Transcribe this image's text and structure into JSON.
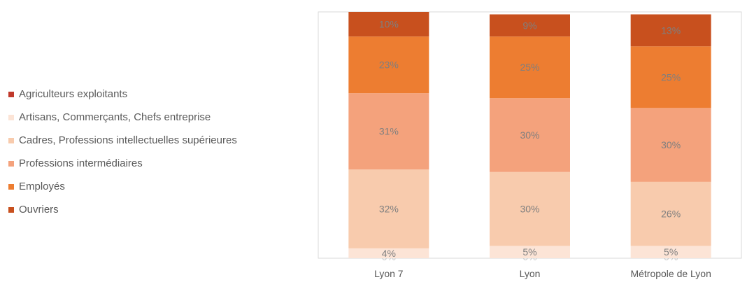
{
  "chart_data": {
    "type": "bar",
    "stacked": true,
    "percent": true,
    "title": "",
    "xlabel": "",
    "ylabel": "",
    "ylim": [
      0,
      100
    ],
    "grid": false,
    "legend_position": "left",
    "categories": [
      "Lyon 7",
      "Lyon",
      "Métropole de Lyon"
    ],
    "series": [
      {
        "name": "Agriculteurs exploitants",
        "color": "#c0392b",
        "values": [
          0,
          0,
          0
        ],
        "labels": [
          "0%",
          "0%",
          "0%"
        ]
      },
      {
        "name": "Artisans, Commerçants, Chefs entreprise",
        "color": "#fce4d6",
        "values": [
          4,
          5,
          5
        ],
        "labels": [
          "4%",
          "5%",
          "5%"
        ]
      },
      {
        "name": "Cadres, Professions intellectuelles supérieures",
        "color": "#f8cbad",
        "values": [
          32,
          30,
          26
        ],
        "labels": [
          "32%",
          "30%",
          "26%"
        ]
      },
      {
        "name": "Professions intermédiaires",
        "color": "#f4a27c",
        "values": [
          31,
          30,
          30
        ],
        "labels": [
          "31%",
          "30%",
          "30%"
        ]
      },
      {
        "name": "Employés",
        "color": "#ed7d31",
        "values": [
          23,
          25,
          25
        ],
        "labels": [
          "23%",
          "25%",
          "25%"
        ]
      },
      {
        "name": "Ouvriers",
        "color": "#c8501e",
        "values": [
          10,
          9,
          13
        ],
        "labels": [
          "10%",
          "9%",
          "13%"
        ]
      }
    ]
  }
}
